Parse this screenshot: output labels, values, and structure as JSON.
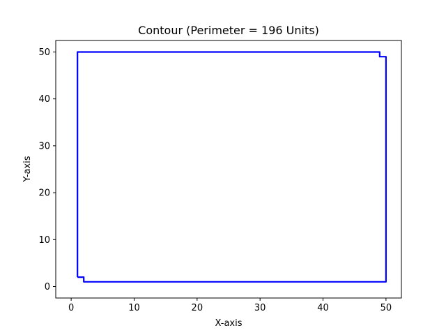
{
  "chart_data": {
    "type": "line",
    "title": "Contour (Perimeter = 196 Units)",
    "xlabel": "X-axis",
    "ylabel": "Y-axis",
    "xlim": [
      -2.45,
      52.45
    ],
    "ylim": [
      -2.45,
      52.45
    ],
    "xticks": [
      0,
      10,
      20,
      30,
      40,
      50
    ],
    "yticks": [
      0,
      10,
      20,
      30,
      40,
      50
    ],
    "grid": false,
    "series": [
      {
        "color": "#0000ff",
        "x": [
          1,
          1,
          2,
          2,
          50,
          50,
          49,
          49,
          1
        ],
        "y": [
          2,
          50,
          50,
          50,
          50,
          49,
          49,
          49,
          50
        ]
      }
    ],
    "contour": {
      "x": [
        1,
        1,
        49,
        49,
        50,
        50,
        2,
        2,
        1
      ],
      "y": [
        2,
        50,
        50,
        49,
        49,
        1,
        1,
        2,
        2
      ]
    }
  }
}
